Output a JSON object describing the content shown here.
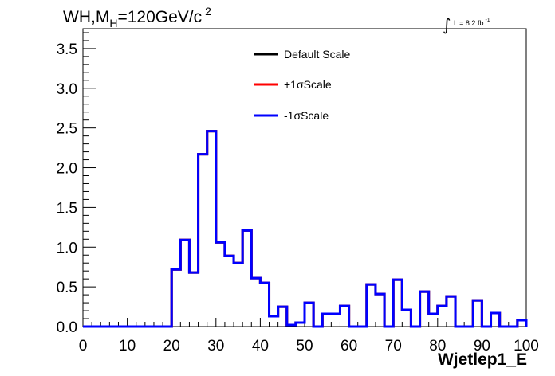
{
  "chart_data": {
    "type": "line",
    "title": {
      "main": "WH,M",
      "sub": "H",
      "after": "=120GeV/c",
      "sup": "2"
    },
    "lumi": {
      "integral": "∫",
      "text": "L = 8.2 fb",
      "sup": "-1"
    },
    "xlabel": "Wjetlep1_E",
    "ylabel": "",
    "xlim": [
      0,
      100
    ],
    "ylim": [
      0,
      3.75
    ],
    "x_ticks": [
      "0",
      "10",
      "20",
      "30",
      "40",
      "50",
      "60",
      "70",
      "80",
      "90",
      "100"
    ],
    "y_ticks": [
      "0.0",
      "0.5",
      "1.0",
      "1.5",
      "2.0",
      "2.5",
      "3.0",
      "3.5"
    ],
    "bin_edges": [
      0,
      2,
      4,
      6,
      8,
      10,
      12,
      14,
      16,
      18,
      20,
      22,
      24,
      26,
      28,
      30,
      32,
      34,
      36,
      38,
      40,
      42,
      44,
      46,
      48,
      50,
      52,
      54,
      56,
      58,
      60,
      62,
      64,
      66,
      68,
      70,
      72,
      74,
      76,
      78,
      80,
      82,
      84,
      86,
      88,
      90,
      92,
      94,
      96,
      98,
      100
    ],
    "legend_position": "top-center",
    "series": [
      {
        "name": "Default Scale",
        "color": "#000000",
        "values": [
          0,
          0,
          0,
          0,
          0,
          0,
          0,
          0,
          0,
          0,
          0.72,
          1.09,
          0.68,
          2.17,
          2.46,
          1.06,
          0.89,
          0.8,
          1.21,
          0.61,
          0.55,
          0.13,
          0.25,
          0.02,
          0.05,
          0.3,
          0,
          0.16,
          0.16,
          0.26,
          0,
          0,
          0.53,
          0.41,
          0,
          0.59,
          0.21,
          0,
          0.44,
          0.16,
          0.26,
          0.38,
          0,
          0,
          0.33,
          0,
          0.17,
          0,
          0,
          0.08
        ]
      },
      {
        "name": "+1σScale",
        "color": "#ff0000",
        "values": [
          0,
          0,
          0,
          0,
          0,
          0,
          0,
          0,
          0,
          0,
          0.72,
          1.09,
          0.68,
          2.17,
          2.46,
          1.06,
          0.89,
          0.8,
          1.21,
          0.61,
          0.55,
          0.13,
          0.25,
          0.02,
          0.05,
          0.3,
          0,
          0.16,
          0.16,
          0.26,
          0,
          0,
          0.53,
          0.41,
          0,
          0.59,
          0.21,
          0,
          0.44,
          0.16,
          0.26,
          0.38,
          0,
          0,
          0.33,
          0,
          0.17,
          0,
          0,
          0.08
        ]
      },
      {
        "name": "-1σScale",
        "color": "#0000ff",
        "values": [
          0,
          0,
          0,
          0,
          0,
          0,
          0,
          0,
          0,
          0,
          0.72,
          1.09,
          0.68,
          2.17,
          2.46,
          1.06,
          0.89,
          0.8,
          1.21,
          0.61,
          0.55,
          0.13,
          0.25,
          0.02,
          0.05,
          0.3,
          0,
          0.16,
          0.16,
          0.26,
          0,
          0,
          0.53,
          0.41,
          0,
          0.59,
          0.21,
          0,
          0.44,
          0.16,
          0.26,
          0.38,
          0,
          0,
          0.33,
          0,
          0.17,
          0,
          0,
          0.08
        ]
      }
    ]
  }
}
